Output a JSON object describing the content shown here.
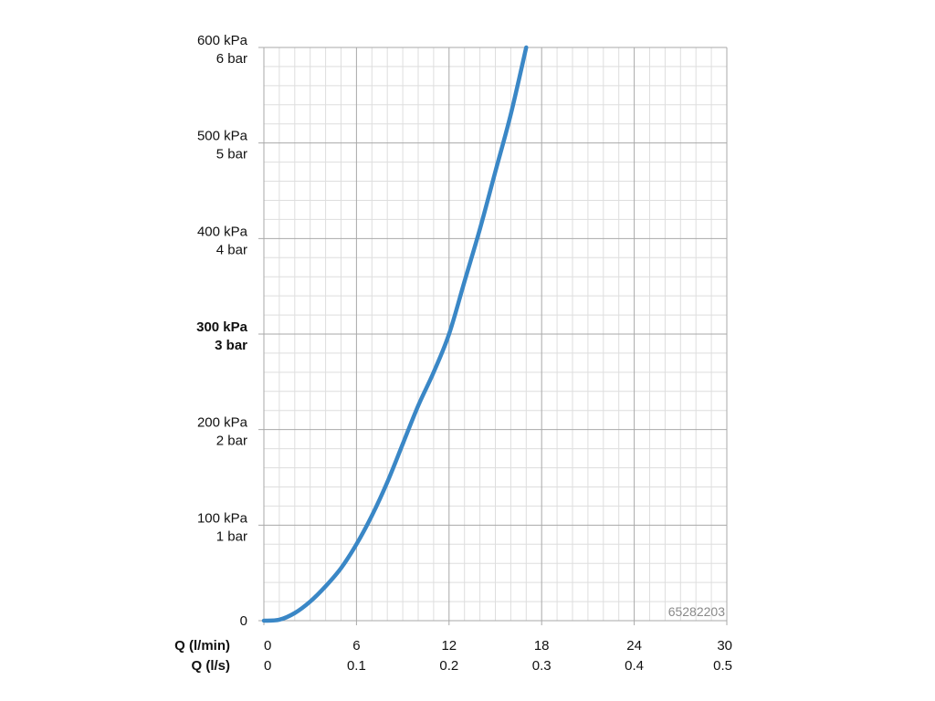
{
  "chart_data": {
    "type": "line",
    "title": "",
    "x_axes": [
      {
        "label": "Q (l/min)",
        "ticks": [
          "0",
          "6",
          "12",
          "18",
          "24",
          "30"
        ]
      },
      {
        "label": "Q (l/s)",
        "ticks": [
          "0",
          "0.1",
          "0.2",
          "0.3",
          "0.4",
          "0.5"
        ]
      }
    ],
    "xlim": [
      0,
      30
    ],
    "ylim": [
      0,
      600
    ],
    "y_ticks": [
      {
        "value": 0,
        "kpa": "0",
        "bar": "",
        "bold": false
      },
      {
        "value": 100,
        "kpa": "100 kPa",
        "bar": "1 bar",
        "bold": false
      },
      {
        "value": 200,
        "kpa": "200 kPa",
        "bar": "2 bar",
        "bold": false
      },
      {
        "value": 300,
        "kpa": "300 kPa",
        "bar": "3 bar",
        "bold": true
      },
      {
        "value": 400,
        "kpa": "400 kPa",
        "bar": "4 bar",
        "bold": false
      },
      {
        "value": 500,
        "kpa": "500 kPa",
        "bar": "5 bar",
        "bold": false
      },
      {
        "value": 600,
        "kpa": "600 kPa",
        "bar": "6 bar",
        "bold": false
      }
    ],
    "grid": true,
    "line_color": "#3a87c6",
    "series": [
      {
        "x": [
          0,
          1,
          2,
          3,
          4,
          5,
          6,
          7,
          8,
          9,
          10,
          11,
          12,
          13,
          14,
          15,
          16,
          17
        ],
        "values": [
          0,
          1,
          8,
          20,
          36,
          55,
          80,
          110,
          145,
          185,
          225,
          260,
          300,
          355,
          410,
          470,
          530,
          600
        ]
      }
    ],
    "watermark": "65282203"
  }
}
